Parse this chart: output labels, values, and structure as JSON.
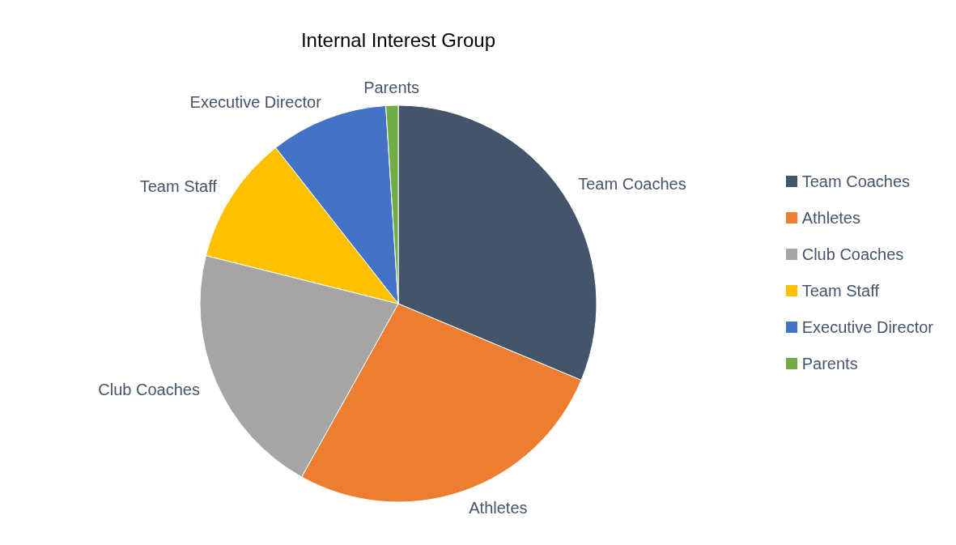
{
  "chart_data": {
    "type": "pie",
    "title": "Internal Interest Group",
    "categories": [
      "Team Coaches",
      "Athletes",
      "Club Coaches",
      "Team Staff",
      "Executive Director",
      "Parents"
    ],
    "values": [
      31.3,
      26.8,
      20.8,
      10.5,
      9.6,
      1.0
    ],
    "colors": [
      "#44546a",
      "#ed7d31",
      "#a5a5a5",
      "#ffc000",
      "#4472c4",
      "#70ad47"
    ],
    "legend": "right"
  }
}
